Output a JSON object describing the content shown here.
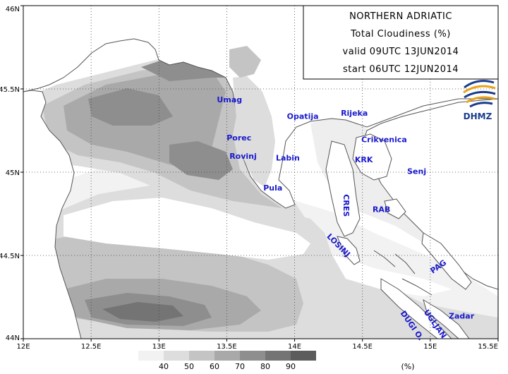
{
  "title_box": {
    "region": "NORTHERN ADRIATIC",
    "variable": "Total Cloudiness (%)",
    "valid": "valid 09UTC  13JUN2014",
    "start": "start 06UTC  12JUN2014"
  },
  "logo": {
    "text": "DHMZ"
  },
  "axes": {
    "lon_range": [
      12.0,
      15.5
    ],
    "lat_range": [
      44.0,
      46.0
    ],
    "x_ticks": [
      {
        "value": 12.0,
        "label": "12E"
      },
      {
        "value": 12.5,
        "label": "12.5E"
      },
      {
        "value": 13.0,
        "label": "13E"
      },
      {
        "value": 13.5,
        "label": "13.5E"
      },
      {
        "value": 14.0,
        "label": "14E"
      },
      {
        "value": 14.5,
        "label": "14.5E"
      },
      {
        "value": 15.0,
        "label": "15E"
      },
      {
        "value": 15.5,
        "label": "15.5E"
      }
    ],
    "y_ticks": [
      {
        "value": 46.0,
        "label": "46N"
      },
      {
        "value": 45.5,
        "label": "45.5N"
      },
      {
        "value": 45.0,
        "label": "45N"
      },
      {
        "value": 44.5,
        "label": "44.5N"
      },
      {
        "value": 44.0,
        "label": "44N"
      }
    ],
    "grid": true,
    "grid_style": "dotted"
  },
  "places": [
    {
      "name": "Umag",
      "lon": 13.52,
      "lat": 45.42
    },
    {
      "name": "Opatija",
      "lon": 14.06,
      "lat": 45.32
    },
    {
      "name": "Rijeka",
      "lon": 14.44,
      "lat": 45.34
    },
    {
      "name": "Porec",
      "lon": 13.59,
      "lat": 45.19
    },
    {
      "name": "Crikvenica",
      "lon": 14.66,
      "lat": 45.18
    },
    {
      "name": "Rovinj",
      "lon": 13.62,
      "lat": 45.08
    },
    {
      "name": "Labin",
      "lon": 13.95,
      "lat": 45.07
    },
    {
      "name": "KRK",
      "lon": 14.51,
      "lat": 45.06
    },
    {
      "name": "Senj",
      "lon": 14.9,
      "lat": 44.99
    },
    {
      "name": "Pula",
      "lon": 13.84,
      "lat": 44.89
    },
    {
      "name": "CRES",
      "lon": 14.36,
      "lat": 44.8,
      "rotate": 90
    },
    {
      "name": "RAB",
      "lon": 14.64,
      "lat": 44.76
    },
    {
      "name": "LOSINJ",
      "lon": 14.31,
      "lat": 44.55,
      "rotate": 45
    },
    {
      "name": "PAG",
      "lon": 15.07,
      "lat": 44.42,
      "rotate": -35
    },
    {
      "name": "Zadar",
      "lon": 15.23,
      "lat": 44.12
    },
    {
      "name": "UGLJAN",
      "lon": 15.02,
      "lat": 44.08,
      "rotate": 55
    },
    {
      "name": "DUGI O.",
      "lon": 14.85,
      "lat": 44.07,
      "rotate": 55
    }
  ],
  "legend": {
    "unit": "(%)",
    "levels": [
      40,
      50,
      60,
      70,
      80,
      90
    ],
    "colors": [
      "#f2f2f2",
      "#dddddd",
      "#c4c4c4",
      "#a9a9a9",
      "#8e8e8e",
      "#747474",
      "#5c5c5c"
    ]
  },
  "colors": {
    "land": "#ffffff",
    "sea_clear": "#ffffff",
    "coast": "#555555",
    "labels": "#1a1acc"
  }
}
